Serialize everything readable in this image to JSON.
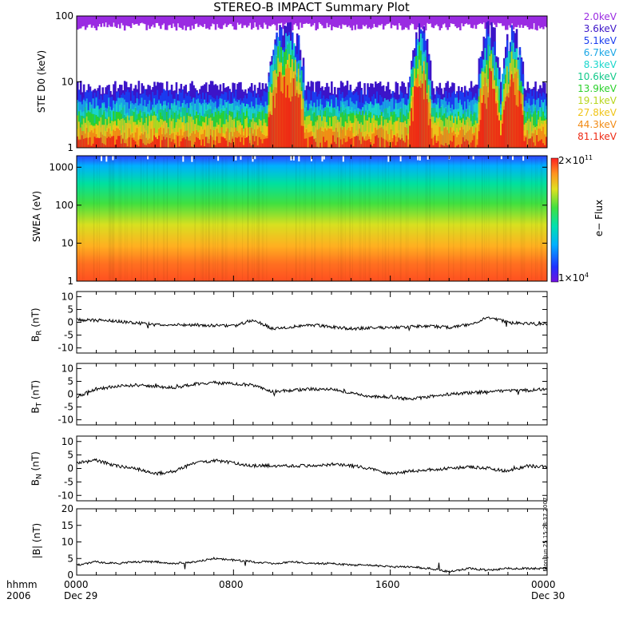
{
  "title": "STEREO-B IMPACT Summary Plot",
  "legend": [
    {
      "label": "2.0keV",
      "color": "#9a2be2"
    },
    {
      "label": "3.6keV",
      "color": "#3c14c8"
    },
    {
      "label": "5.1keV",
      "color": "#1a3cf0"
    },
    {
      "label": "6.7keV",
      "color": "#19a6e6"
    },
    {
      "label": "8.3keV",
      "color": "#19d6cc"
    },
    {
      "label": "10.6keV",
      "color": "#12c98a"
    },
    {
      "label": "13.9keV",
      "color": "#2bd12b"
    },
    {
      "label": "19.1keV",
      "color": "#b8d61c"
    },
    {
      "label": "27.8keV",
      "color": "#f0c418"
    },
    {
      "label": "44.3keV",
      "color": "#f28a14"
    },
    {
      "label": "81.1keV",
      "color": "#ee2a14"
    }
  ],
  "footer": {
    "hhmm": "hhmm",
    "year": "2006",
    "ticks": [
      "0000",
      "0800",
      "1600",
      "0000"
    ],
    "start_date": "Dec 29",
    "end_date": "Dec 30",
    "stamp": "Mon Jun 25 15:28:37 2007"
  },
  "colorbar": {
    "label": "e− Flux",
    "max": "2×10",
    "max_exp": "11",
    "min": "1×10",
    "min_exp": "4"
  },
  "chart_data": [
    {
      "type": "area",
      "ylabel": "STE D0 (keV)",
      "yscale": "log",
      "ylim": [
        1,
        100
      ],
      "yticks": [
        "1",
        "10",
        "100"
      ],
      "x_hours": [
        0,
        24
      ],
      "note": "stacked spectrum of 11 energy channels; intense bursts near 10-11h, 17.5h, 21h, 22h",
      "channels": [
        "2.0keV",
        "3.6keV",
        "5.1keV",
        "6.7keV",
        "8.3keV",
        "10.6keV",
        "13.9keV",
        "19.1keV",
        "27.8keV",
        "44.3keV",
        "81.1keV"
      ]
    },
    {
      "type": "heatmap",
      "ylabel": "SWEA (eV)",
      "yscale": "log",
      "ylim": [
        1,
        2000
      ],
      "yticks": [
        "1",
        "10",
        "100",
        "1000"
      ],
      "x_hours": [
        0,
        24
      ],
      "zlabel": "e− Flux",
      "zlim": [
        10000,
        200000000000
      ]
    },
    {
      "type": "line",
      "ylabel": "B_R (nT)",
      "ylim": [
        -12,
        12
      ],
      "yticks": [
        "-10",
        "-5",
        "0",
        "5",
        "10"
      ],
      "x_hours": [
        0,
        2,
        4,
        6,
        8,
        9,
        10,
        12,
        14,
        16,
        18,
        19,
        20,
        21,
        22,
        23,
        24
      ],
      "y": [
        1,
        0.5,
        -1,
        -1,
        -1.5,
        1,
        -2.5,
        -1,
        -2.5,
        -2,
        -1.5,
        -2,
        -1,
        2,
        0,
        -0.5,
        -1
      ]
    },
    {
      "type": "line",
      "ylabel": "B_T (nT)",
      "ylim": [
        -12,
        12
      ],
      "yticks": [
        "-10",
        "-5",
        "0",
        "5",
        "10"
      ],
      "x_hours": [
        0,
        1,
        2,
        3,
        4,
        5,
        6,
        7,
        8,
        9,
        10,
        11,
        12,
        13,
        14,
        15,
        16,
        17,
        18,
        19,
        20,
        21,
        22,
        23,
        24
      ],
      "y": [
        -1,
        2,
        3,
        3.5,
        3,
        2.5,
        4,
        4.5,
        4,
        3.5,
        1,
        1.5,
        2,
        2,
        0.5,
        -1,
        -1,
        -2,
        -1,
        0,
        0.5,
        1,
        1.5,
        1.5,
        2
      ]
    },
    {
      "type": "line",
      "ylabel": "B_N (nT)",
      "ylim": [
        -12,
        12
      ],
      "yticks": [
        "-10",
        "-5",
        "0",
        "5",
        "10"
      ],
      "x_hours": [
        0,
        1,
        2,
        3,
        4,
        5,
        6,
        7,
        8,
        9,
        10,
        11,
        12,
        13,
        14,
        15,
        16,
        17,
        18,
        19,
        20,
        21,
        22,
        23,
        24
      ],
      "y": [
        2,
        3,
        1,
        0,
        -2,
        -1,
        2,
        3,
        2,
        1,
        1,
        1,
        1,
        1.5,
        1,
        0,
        -2,
        -1,
        -0.5,
        0,
        0.5,
        0,
        -1,
        1,
        0.5
      ]
    },
    {
      "type": "line",
      "ylabel": "|B| (nT)",
      "ylim": [
        0,
        20
      ],
      "yticks": [
        "0",
        "5",
        "10",
        "15",
        "20"
      ],
      "x_hours": [
        0,
        1,
        2,
        3,
        4,
        5,
        6,
        7,
        8,
        9,
        10,
        11,
        12,
        13,
        14,
        15,
        16,
        17,
        18,
        19,
        20,
        21,
        22,
        23,
        24
      ],
      "y": [
        3,
        4,
        3.5,
        4,
        4,
        3.5,
        4,
        5,
        4.5,
        4,
        3.5,
        4,
        3.5,
        3.5,
        3,
        3,
        2.5,
        2.5,
        2,
        1,
        2,
        1.5,
        2,
        2,
        2
      ]
    }
  ]
}
